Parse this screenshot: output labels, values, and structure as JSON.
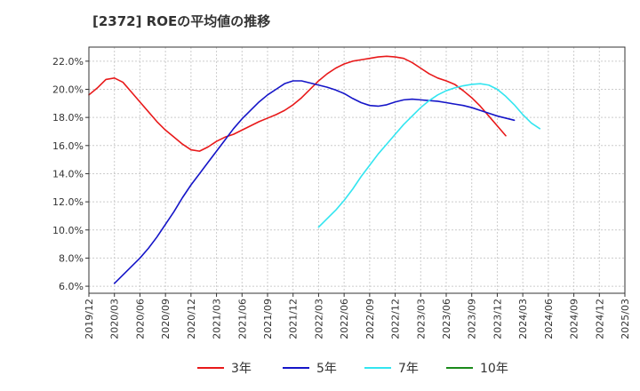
{
  "chart_data": {
    "type": "line",
    "title": "[2372]  ROEの平均値の推移",
    "xlabel": "",
    "ylabel": "",
    "ylim": [
      5.5,
      23.0
    ],
    "y_ticks": [
      6.0,
      8.0,
      10.0,
      12.0,
      14.0,
      16.0,
      18.0,
      20.0,
      22.0
    ],
    "y_tick_labels": [
      "6.0%",
      "8.0%",
      "10.0%",
      "12.0%",
      "14.0%",
      "16.0%",
      "18.0%",
      "20.0%",
      "22.0%"
    ],
    "x_tick_labels": [
      "2019/12",
      "2020/03",
      "2020/06",
      "2020/09",
      "2020/12",
      "2021/03",
      "2021/06",
      "2021/09",
      "2021/12",
      "2022/03",
      "2022/06",
      "2022/09",
      "2022/12",
      "2023/03",
      "2023/06",
      "2023/09",
      "2023/12",
      "2024/03",
      "2024/06",
      "2024/09",
      "2024/12",
      "2025/03"
    ],
    "grid": true,
    "legend_position": "bottom",
    "series": [
      {
        "name": "3年",
        "color": "#e8191a",
        "start_index": 0,
        "values": [
          19.6,
          20.1,
          20.7,
          20.8,
          20.5,
          19.8,
          19.1,
          18.4,
          17.7,
          17.1,
          16.6,
          16.1,
          15.7,
          15.6,
          15.9,
          16.3,
          16.6,
          16.8,
          17.1,
          17.4,
          17.7,
          17.95,
          18.2,
          18.5,
          18.9,
          19.4,
          20.0,
          20.6,
          21.1,
          21.5,
          21.8,
          22.0,
          22.1,
          22.2,
          22.3,
          22.35,
          22.3,
          22.2,
          21.9,
          21.5,
          21.1,
          20.8,
          20.6,
          20.35,
          19.9,
          19.4,
          18.8,
          18.1,
          17.4,
          16.7
        ]
      },
      {
        "name": "5年",
        "color": "#1515c8",
        "start_index": 3,
        "values": [
          6.2,
          6.8,
          7.4,
          8.0,
          8.7,
          9.5,
          10.4,
          11.3,
          12.3,
          13.2,
          14.0,
          14.8,
          15.6,
          16.4,
          17.2,
          17.9,
          18.5,
          19.1,
          19.6,
          20.0,
          20.4,
          20.6,
          20.6,
          20.45,
          20.3,
          20.15,
          19.95,
          19.7,
          19.35,
          19.05,
          18.85,
          18.8,
          18.9,
          19.1,
          19.25,
          19.3,
          19.25,
          19.2,
          19.15,
          19.05,
          18.95,
          18.85,
          18.7,
          18.5,
          18.3,
          18.1,
          17.95,
          17.8
        ]
      },
      {
        "name": "7年",
        "color": "#33e5f0",
        "start_index": 27,
        "values": [
          10.2,
          10.8,
          11.4,
          12.1,
          12.9,
          13.8,
          14.6,
          15.4,
          16.1,
          16.8,
          17.5,
          18.1,
          18.7,
          19.2,
          19.6,
          19.9,
          20.1,
          20.25,
          20.35,
          20.4,
          20.3,
          20.0,
          19.5,
          18.9,
          18.2,
          17.6,
          17.2
        ]
      },
      {
        "name": "10年",
        "color": "#1a8a1a",
        "start_index": 0,
        "values": []
      }
    ]
  }
}
